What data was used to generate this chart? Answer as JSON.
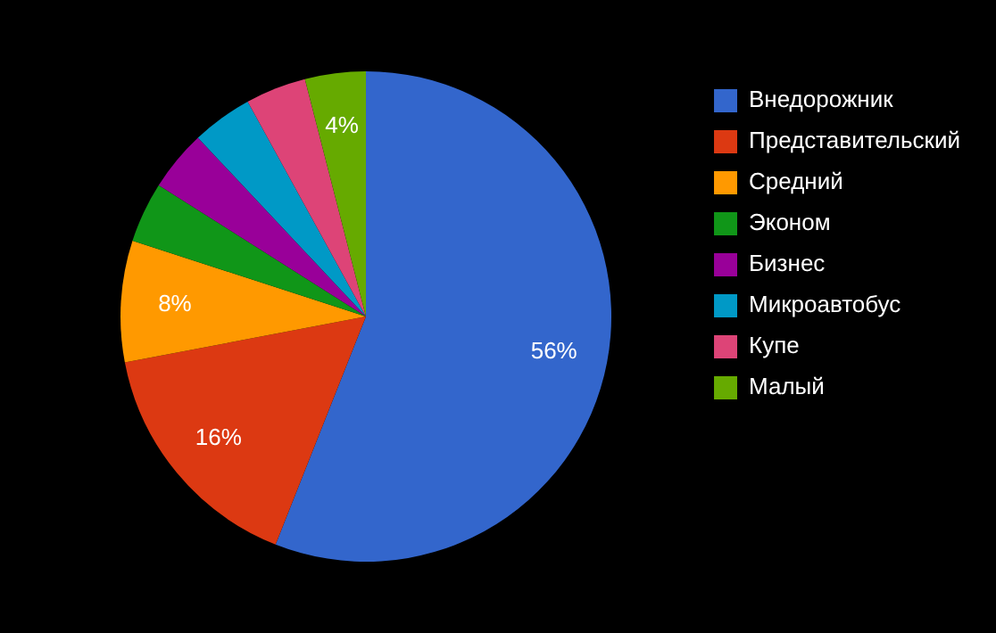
{
  "chart_data": {
    "type": "pie",
    "categories": [
      "Внедорожник",
      "Представительский",
      "Средний",
      "Эконом",
      "Бизнес",
      "Микроавтобус",
      "Купе",
      "Малый"
    ],
    "values": [
      56,
      16,
      8,
      4,
      4,
      4,
      4,
      4
    ],
    "colors": [
      "#3366cc",
      "#dc3912",
      "#ff9900",
      "#109618",
      "#990099",
      "#0099c6",
      "#dd4477",
      "#66aa00"
    ],
    "value_labels": [
      "56%",
      "16%",
      "8%",
      null,
      null,
      null,
      null,
      "4%"
    ],
    "legend": "top right"
  }
}
